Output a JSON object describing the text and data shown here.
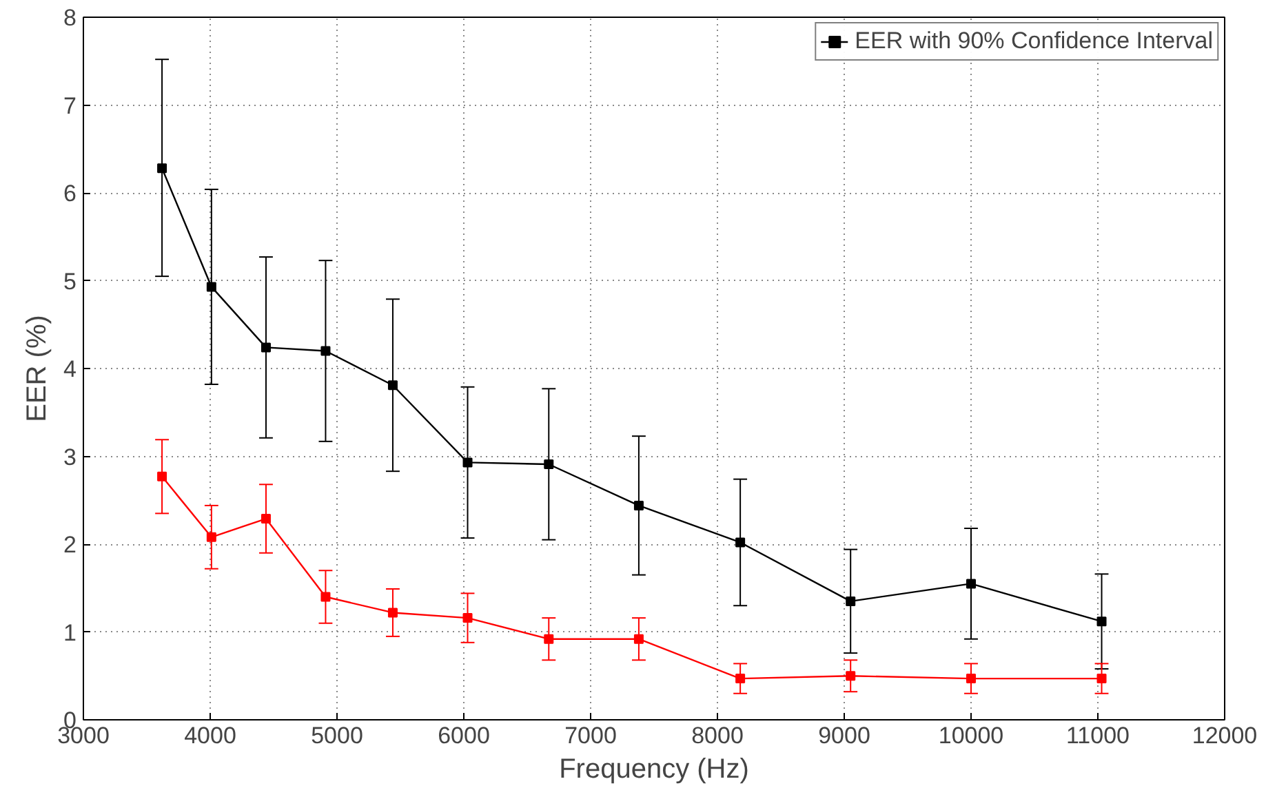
{
  "chart_data": {
    "type": "line",
    "xlabel": "Frequency (Hz)",
    "ylabel": "EER (%)",
    "x": [
      3620,
      4010,
      4440,
      4910,
      5440,
      6030,
      6670,
      7380,
      8180,
      9050,
      10000,
      11030
    ],
    "series": [
      {
        "name": "EER with 90% Confidence Interval",
        "color": "#000000",
        "values": [
          6.28,
          4.93,
          4.24,
          4.2,
          3.81,
          2.93,
          2.91,
          2.44,
          2.02,
          1.35,
          1.55,
          1.12
        ],
        "errors": [
          [
            5.05,
            7.52
          ],
          [
            3.82,
            6.04
          ],
          [
            3.21,
            5.27
          ],
          [
            3.17,
            5.23
          ],
          [
            2.83,
            4.79
          ],
          [
            2.07,
            3.79
          ],
          [
            2.05,
            3.77
          ],
          [
            1.65,
            3.23
          ],
          [
            1.3,
            2.74
          ],
          [
            0.76,
            1.94
          ],
          [
            0.92,
            2.18
          ],
          [
            0.58,
            1.66
          ]
        ]
      },
      {
        "color": "#ff0000",
        "values": [
          2.77,
          2.08,
          2.29,
          1.4,
          1.22,
          1.16,
          0.92,
          0.92,
          0.47,
          0.5,
          0.47,
          0.47
        ],
        "errors": [
          [
            2.35,
            3.19
          ],
          [
            1.72,
            2.44
          ],
          [
            1.9,
            2.68
          ],
          [
            1.1,
            1.7
          ],
          [
            0.95,
            1.49
          ],
          [
            0.88,
            1.44
          ],
          [
            0.68,
            1.16
          ],
          [
            0.68,
            1.16
          ],
          [
            0.3,
            0.64
          ],
          [
            0.32,
            0.68
          ],
          [
            0.3,
            0.64
          ],
          [
            0.3,
            0.64
          ]
        ]
      }
    ],
    "xlim": [
      3000,
      12000
    ],
    "xticks": [
      3000,
      4000,
      5000,
      6000,
      7000,
      8000,
      9000,
      10000,
      11000,
      12000
    ],
    "ylim": [
      0,
      8
    ],
    "yticks": [
      0,
      1,
      2,
      3,
      4,
      5,
      6,
      7,
      8
    ],
    "grid": true,
    "legend": "top right",
    "marker": "square",
    "line_style": "solid"
  }
}
